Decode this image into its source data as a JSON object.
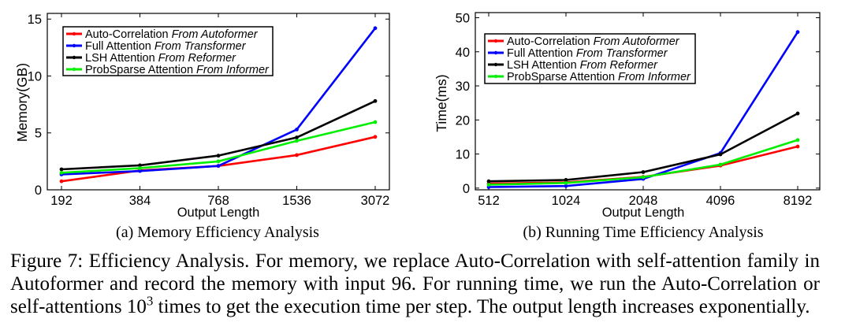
{
  "figure": {
    "caption": {
      "line1": "Figure 7: Efficiency Analysis. For memory, we replace Auto-Correlation with self-attention family in",
      "line2": "Autoformer and record the memory with input 96. For running time, we run the Auto-Correlation or",
      "line3_before_sup": "self-attentions 10",
      "line3_sup": "3",
      "line3_after_sup": " times to get the execution time per step. The output length increases exponentially."
    }
  },
  "chart_data": [
    {
      "type": "line",
      "caption": "(a) Memory Efficiency Analysis",
      "xlabel": "Output Length",
      "ylabel": "Memory(GB)",
      "categories": [
        "192",
        "384",
        "768",
        "1536",
        "3072"
      ],
      "yticks": [
        0,
        5,
        10,
        15
      ],
      "ylim": [
        0,
        15.5
      ],
      "grid": false,
      "legend_position": "top-left",
      "series": [
        {
          "name": "Auto-Correlation",
          "name_italic": "From Autoformer",
          "color": "#ff0000",
          "values": [
            0.75,
            1.7,
            2.1,
            3.05,
            4.65
          ]
        },
        {
          "name": "Full Attention",
          "name_italic": "From Transformer",
          "color": "#0000ff",
          "values": [
            1.35,
            1.65,
            2.1,
            5.3,
            14.2
          ]
        },
        {
          "name": "LSH Attention",
          "name_italic": "From Reformer",
          "color": "#000000",
          "values": [
            1.8,
            2.15,
            3.0,
            4.6,
            7.8
          ]
        },
        {
          "name": "ProbSparse Attention",
          "name_italic": "From Informer",
          "color": "#00ee00",
          "values": [
            1.5,
            1.9,
            2.5,
            4.3,
            5.95
          ]
        }
      ]
    },
    {
      "type": "line",
      "caption": "(b) Running Time Efficiency Analysis",
      "xlabel": "Output Length",
      "ylabel": "Time(ms)",
      "categories": [
        "512",
        "1024",
        "2048",
        "4096",
        "8192"
      ],
      "yticks": [
        0,
        10,
        20,
        30,
        40,
        50
      ],
      "ylim": [
        -0.5,
        51.5
      ],
      "grid": false,
      "legend_position": "top-left",
      "series": [
        {
          "name": "Auto-Correlation",
          "name_italic": "From Autoformer",
          "color": "#ff0000",
          "values": [
            1.3,
            1.7,
            3.3,
            6.6,
            12.2
          ]
        },
        {
          "name": "Full Attention",
          "name_italic": "From Transformer",
          "color": "#0000ff",
          "values": [
            0.3,
            0.6,
            2.7,
            10.3,
            45.8
          ]
        },
        {
          "name": "LSH Attention",
          "name_italic": "From Reformer",
          "color": "#000000",
          "values": [
            2.0,
            2.4,
            4.7,
            9.9,
            21.9
          ]
        },
        {
          "name": "ProbSparse Attention",
          "name_italic": "From Informer",
          "color": "#00ee00",
          "values": [
            1.0,
            1.5,
            3.2,
            6.9,
            14.1
          ]
        }
      ]
    }
  ]
}
